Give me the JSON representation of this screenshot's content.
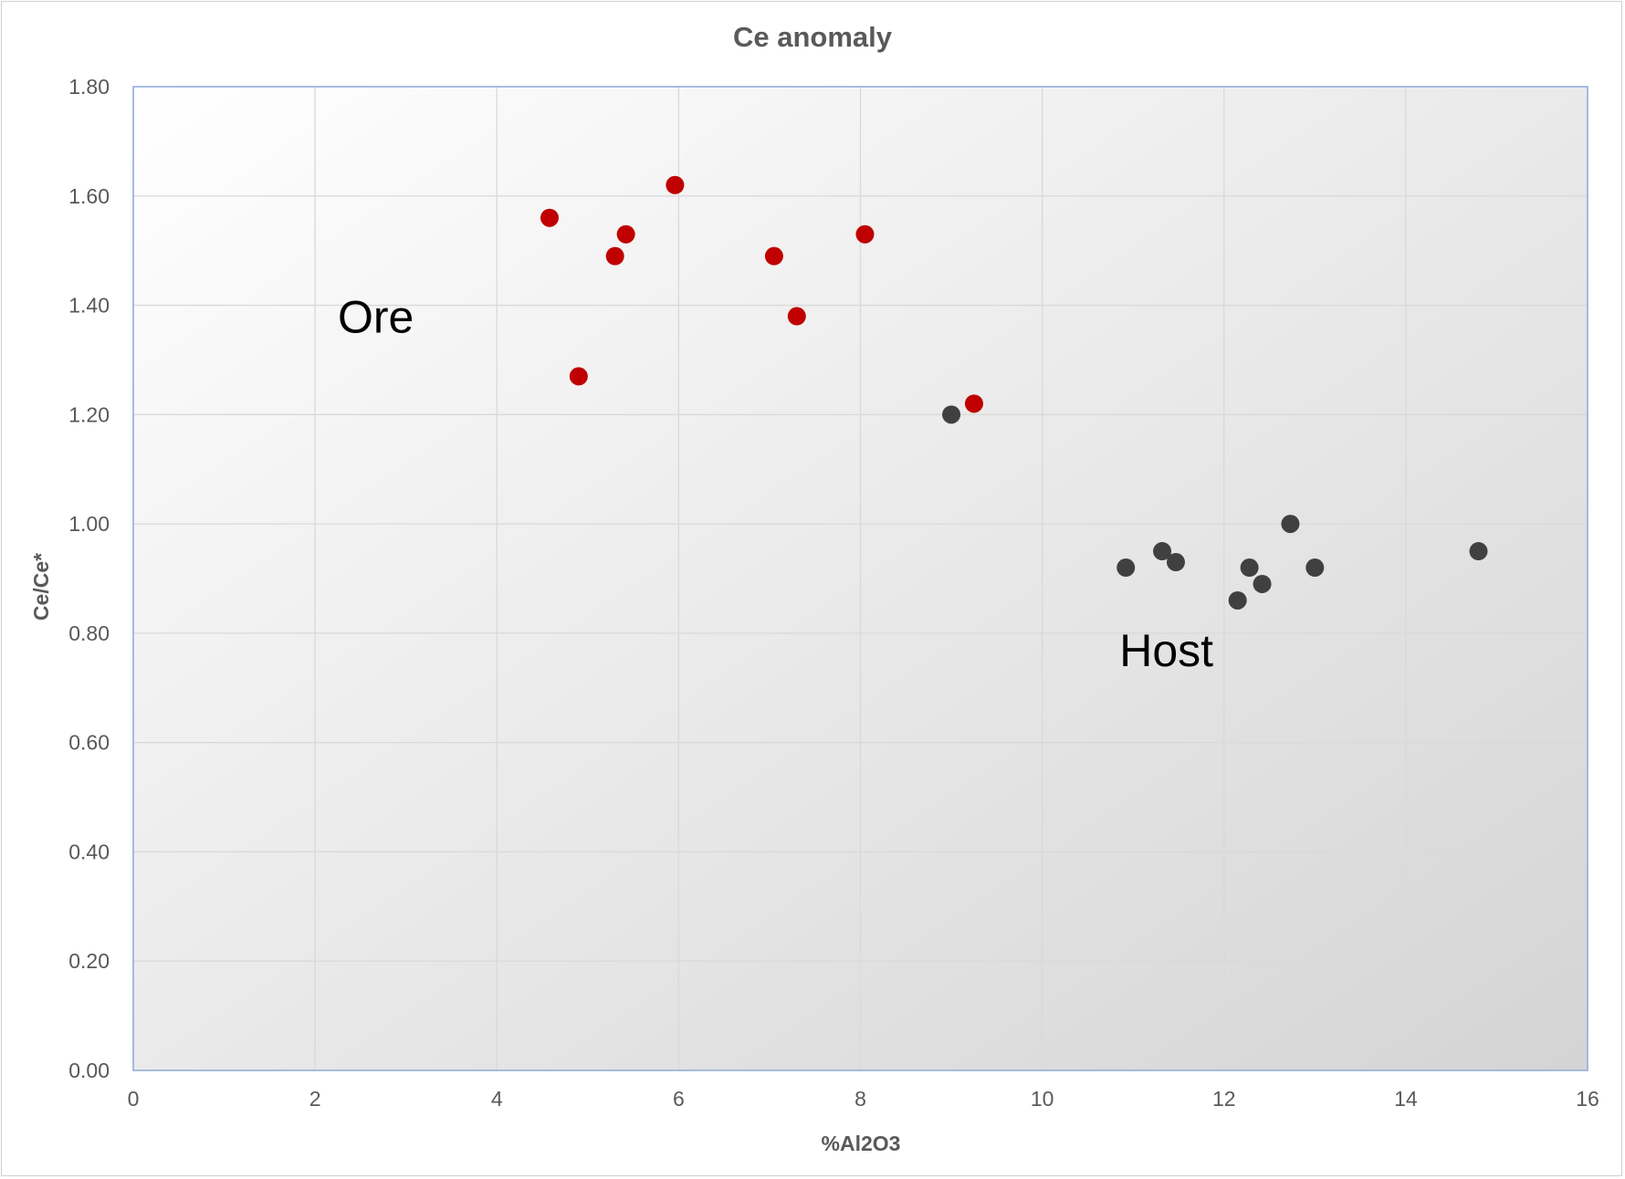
{
  "chart_data": {
    "type": "scatter",
    "title": "Ce anomaly",
    "xlabel": "%Al2O3",
    "ylabel": "Ce/Ce*",
    "xlim": [
      0,
      16
    ],
    "ylim": [
      0,
      1.8
    ],
    "x_ticks": [
      "0",
      "2",
      "4",
      "6",
      "8",
      "10",
      "12",
      "14",
      "16"
    ],
    "y_ticks": [
      "0.00",
      "0.20",
      "0.40",
      "0.60",
      "0.80",
      "1.00",
      "1.20",
      "1.40",
      "1.60",
      "1.80"
    ],
    "grid": true,
    "legend": "none",
    "annotations": [
      {
        "text": "Ore",
        "x": 2.25,
        "y": 1.35
      },
      {
        "text": "Host",
        "x": 10.85,
        "y": 0.74
      }
    ],
    "series": [
      {
        "color": "#c00000",
        "points": [
          {
            "x": 4.58,
            "y": 1.56
          },
          {
            "x": 4.9,
            "y": 1.27
          },
          {
            "x": 5.3,
            "y": 1.49
          },
          {
            "x": 5.42,
            "y": 1.53
          },
          {
            "x": 5.96,
            "y": 1.62
          },
          {
            "x": 7.05,
            "y": 1.49
          },
          {
            "x": 7.3,
            "y": 1.38
          },
          {
            "x": 8.05,
            "y": 1.53
          },
          {
            "x": 9.25,
            "y": 1.22
          }
        ]
      },
      {
        "color": "#404040",
        "points": [
          {
            "x": 9.0,
            "y": 1.2
          },
          {
            "x": 10.92,
            "y": 0.92
          },
          {
            "x": 11.32,
            "y": 0.95
          },
          {
            "x": 11.47,
            "y": 0.93
          },
          {
            "x": 12.15,
            "y": 0.86
          },
          {
            "x": 12.28,
            "y": 0.92
          },
          {
            "x": 12.42,
            "y": 0.89
          },
          {
            "x": 12.73,
            "y": 1.0
          },
          {
            "x": 13.0,
            "y": 0.92
          },
          {
            "x": 14.8,
            "y": 0.95
          }
        ]
      }
    ]
  }
}
